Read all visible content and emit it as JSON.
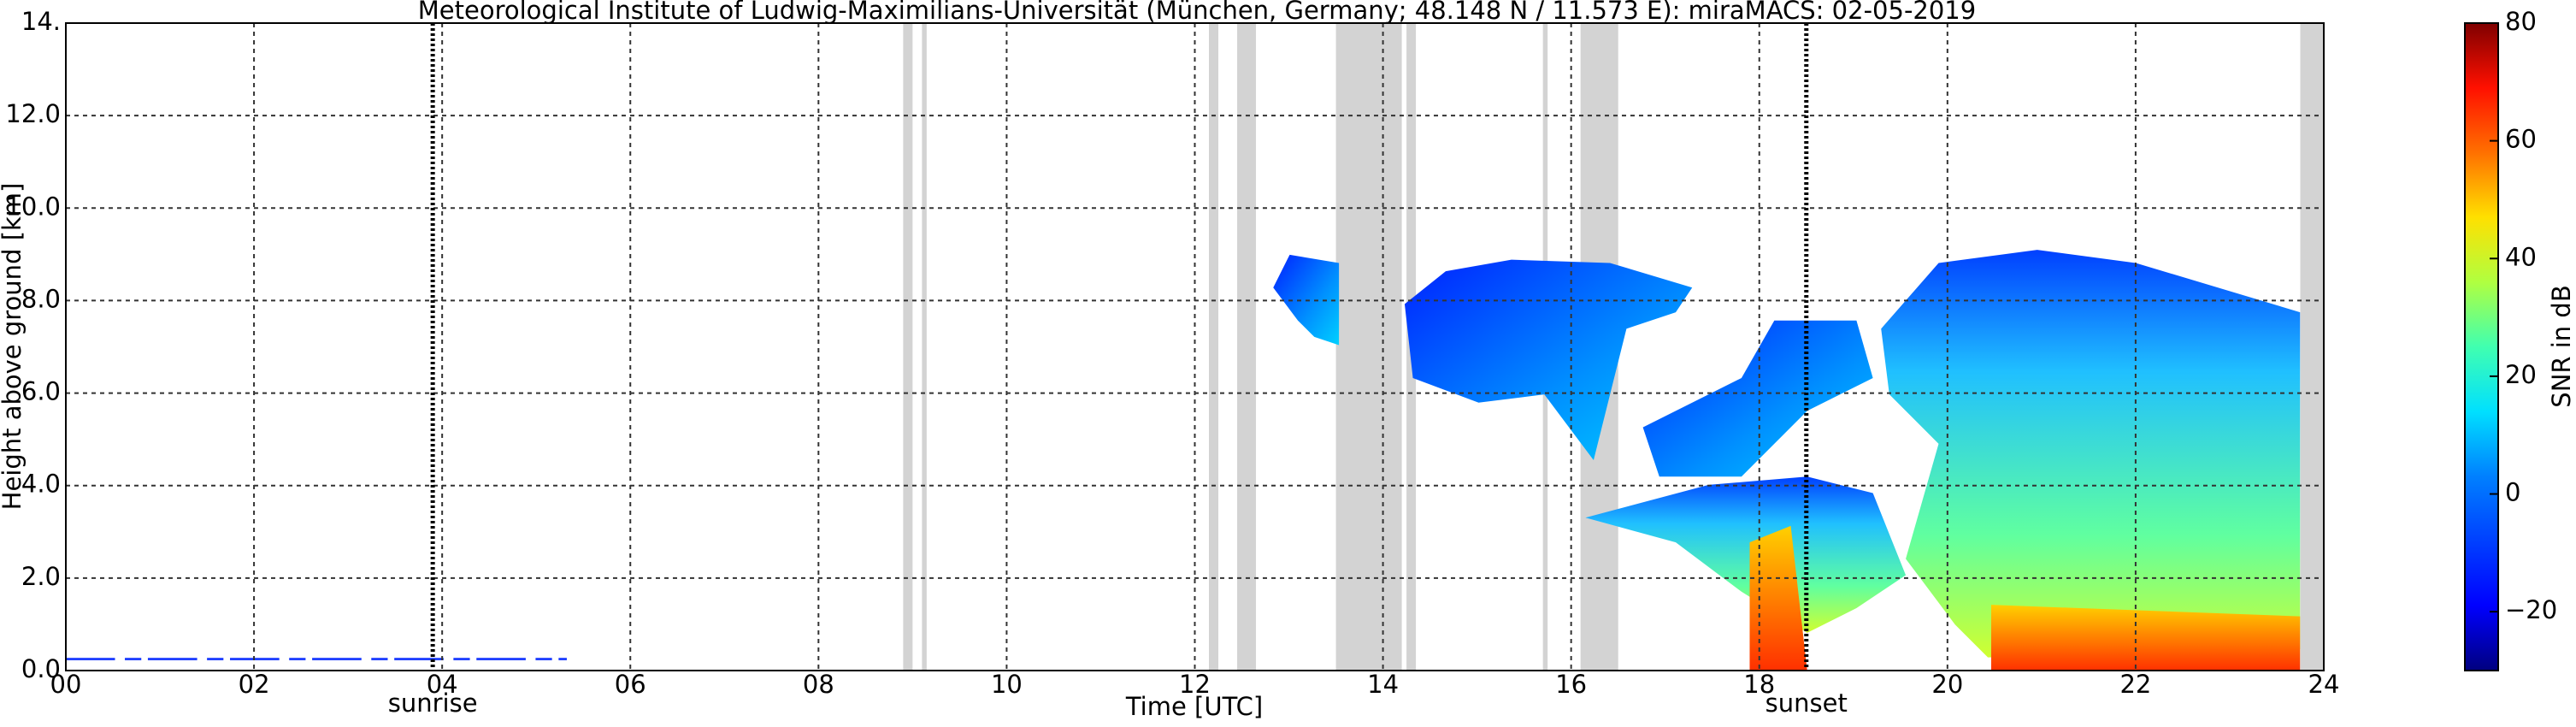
{
  "chart_data": {
    "type": "heatmap",
    "title": "Meteorological Institute of Ludwig-Maximilians-Universität (München, Germany; 48.148 N / 11.573 E):    miraMACS: 02-05-2019",
    "x_label": "Time [UTC]",
    "y_label": "Height above ground [km]",
    "xlim": [
      0,
      24
    ],
    "xticks": [
      {
        "value": 0,
        "label": "00"
      },
      {
        "value": 2,
        "label": "02"
      },
      {
        "value": 4,
        "label": "04"
      },
      {
        "value": 6,
        "label": "06"
      },
      {
        "value": 8,
        "label": "08"
      },
      10,
      12,
      14,
      16,
      18,
      20,
      22,
      24
    ],
    "ylim": [
      0,
      14
    ],
    "yticks": [
      {
        "value": 0,
        "label": "0.0"
      },
      {
        "value": 2,
        "label": "2.0"
      },
      {
        "value": 4,
        "label": "4.0"
      },
      {
        "value": 6,
        "label": "6.0"
      },
      {
        "value": 8,
        "label": "8.0"
      },
      {
        "value": 10,
        "label": "10.0"
      },
      {
        "value": 12,
        "label": "12.0"
      },
      {
        "value": 14,
        "label": "14."
      }
    ],
    "grid": true,
    "annotations": [
      {
        "text": "sunrise",
        "x": 3.9
      },
      {
        "text": "sunset",
        "x": 18.5
      }
    ],
    "no_data_intervals": [
      [
        8.9,
        9.0
      ],
      [
        9.1,
        9.15
      ],
      [
        12.15,
        12.25
      ],
      [
        12.45,
        12.65
      ],
      [
        13.5,
        14.2
      ],
      [
        14.25,
        14.35
      ],
      [
        15.7,
        15.75
      ],
      [
        16.1,
        16.5
      ],
      [
        23.75,
        24.0
      ]
    ],
    "colorbar": {
      "label": "SNR in dB",
      "lim": [
        -30,
        80
      ],
      "ticks": [
        {
          "value": -20,
          "label": "−20"
        },
        0,
        20,
        40,
        60,
        80
      ]
    }
  }
}
